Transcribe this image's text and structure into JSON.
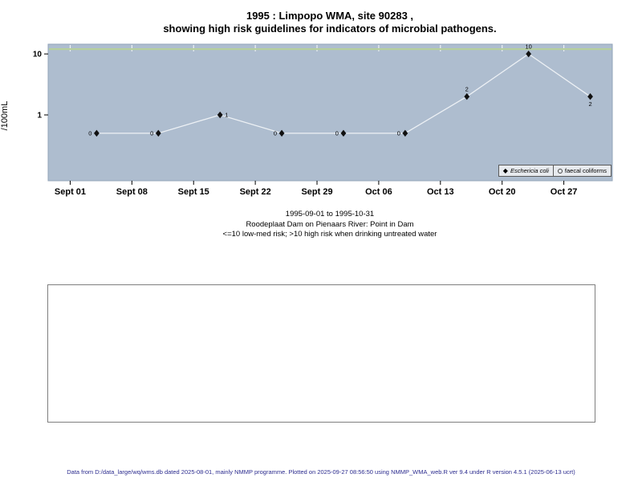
{
  "title": {
    "line1": "1995 : Limpopo WMA, site 90283 ,",
    "line2": "showing high risk guidelines for indicators of microbial pathogens."
  },
  "chart_data": {
    "type": "line",
    "title": "1995 : Limpopo WMA, site 90283 , showing high risk guidelines for indicators of microbial pathogens.",
    "ylabel": "/100mL",
    "y_scale": "log10",
    "y_ticks": [
      1,
      10
    ],
    "y_log_range": [
      -1.08,
      1.16
    ],
    "x_days_range": [
      -2.5,
      61.5
    ],
    "x_tick_days": [
      0,
      7,
      14,
      21,
      28,
      35,
      42,
      49,
      56
    ],
    "x_tick_labels": [
      "Sept 01",
      "Sept 08",
      "Sept 15",
      "Sept 22",
      "Sept 29",
      "Oct 06",
      "Oct 13",
      "Oct 20",
      "Oct 27"
    ],
    "plot_bg_color": "#aebdcf",
    "grid": "top ticks only, white",
    "guideline": {
      "plot_value": 12,
      "color": "#b6cf9d"
    },
    "legend_position": "bottom-right",
    "series": [
      {
        "name": "Eschericia coli",
        "marker": "filled-diamond",
        "marker_color": "#111111",
        "line_color": "#edf1f5",
        "points": [
          {
            "day": 3,
            "value": 0,
            "plotted_at": 0.5,
            "label_pos": "left"
          },
          {
            "day": 10,
            "value": 0,
            "plotted_at": 0.5,
            "label_pos": "left"
          },
          {
            "day": 17,
            "value": 1,
            "plotted_at": 1,
            "label_pos": "right"
          },
          {
            "day": 24,
            "value": 0,
            "plotted_at": 0.5,
            "label_pos": "left"
          },
          {
            "day": 31,
            "value": 0,
            "plotted_at": 0.5,
            "label_pos": "left"
          },
          {
            "day": 38,
            "value": 0,
            "plotted_at": 0.5,
            "label_pos": "left"
          },
          {
            "day": 45,
            "value": 2,
            "plotted_at": 2,
            "label_pos": "above"
          },
          {
            "day": 52,
            "value": 10,
            "plotted_at": 10,
            "label_pos": "above"
          },
          {
            "day": 59,
            "value": 2,
            "plotted_at": 2,
            "label_pos": "below"
          }
        ]
      },
      {
        "name": "faecal coliforms",
        "marker": "open-circle",
        "points": []
      }
    ]
  },
  "captions": {
    "period": "1995-09-01 to 1995-10-31",
    "site": "Roodeplaat Dam on Pienaars River: Point in Dam",
    "risk": "<=10 low-med risk; >10 high risk when drinking untreated water"
  },
  "footer": "Data from D:/data_large/wq/wms.db dated 2025-08-01, mainly NMMP programme. Plotted on 2025-09-27 08:56:50 using NMMP_WMA_web.R ver 9.4 under R version 4.5.1 (2025-06-13 ucrt)"
}
